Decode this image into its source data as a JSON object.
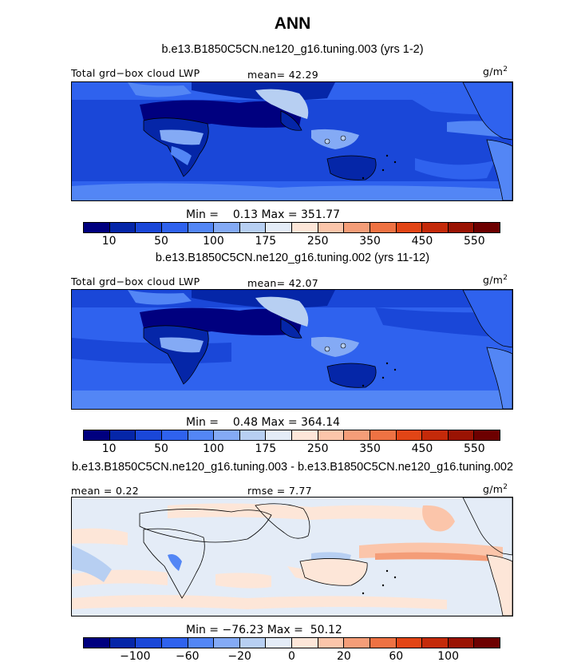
{
  "figure": {
    "title": "ANN"
  },
  "palette": [
    "#00007f",
    "#0526a8",
    "#1a47d8",
    "#2f62ee",
    "#5386f5",
    "#84aaf5",
    "#b7cff2",
    "#e4ecf7",
    "#fde6d8",
    "#fbc5aa",
    "#f49d78",
    "#ee7243",
    "#e24516",
    "#c42a0a",
    "#9a1303",
    "#6d0000"
  ],
  "chart_data": [
    {
      "type": "heatmap",
      "case_label": "b.e13.B1850C5CN.ne120_g16.tuning.003 (yrs 1-2)",
      "variable": "Total grd−box cloud LWP",
      "mean_text": "mean=  42.29",
      "units": "g/m",
      "units_sup": "2",
      "mean": 42.29,
      "min": 0.13,
      "max": 351.77,
      "minmax_text": "Min =    0.13 Max = 351.77",
      "colorbar_ticks": [
        "10",
        "50",
        "100",
        "175",
        "250",
        "350",
        "450",
        "550"
      ]
    },
    {
      "type": "heatmap",
      "case_label": "b.e13.B1850C5CN.ne120_g16.tuning.002 (yrs 11-12)",
      "variable": "Total grd−box cloud LWP",
      "mean_text": "mean=  42.07",
      "units": "g/m",
      "units_sup": "2",
      "mean": 42.07,
      "min": 0.48,
      "max": 364.14,
      "minmax_text": "Min =    0.48 Max = 364.14",
      "colorbar_ticks": [
        "10",
        "50",
        "100",
        "175",
        "250",
        "350",
        "450",
        "550"
      ]
    },
    {
      "type": "heatmap",
      "case_label": "b.e13.B1850C5CN.ne120_g16.tuning.003 - b.e13.B1850C5CN.ne120_g16.tuning.002",
      "mean_text": "mean =   0.22",
      "rmse_text": "rmse =   7.77",
      "units": "g/m",
      "units_sup": "2",
      "mean": 0.22,
      "rmse": 7.77,
      "min": -76.23,
      "max": 50.12,
      "minmax_text": "Min = −76.23 Max =  50.12",
      "colorbar_ticks": [
        "−100",
        "−60",
        "−20",
        "0",
        "20",
        "60",
        "100"
      ]
    }
  ]
}
